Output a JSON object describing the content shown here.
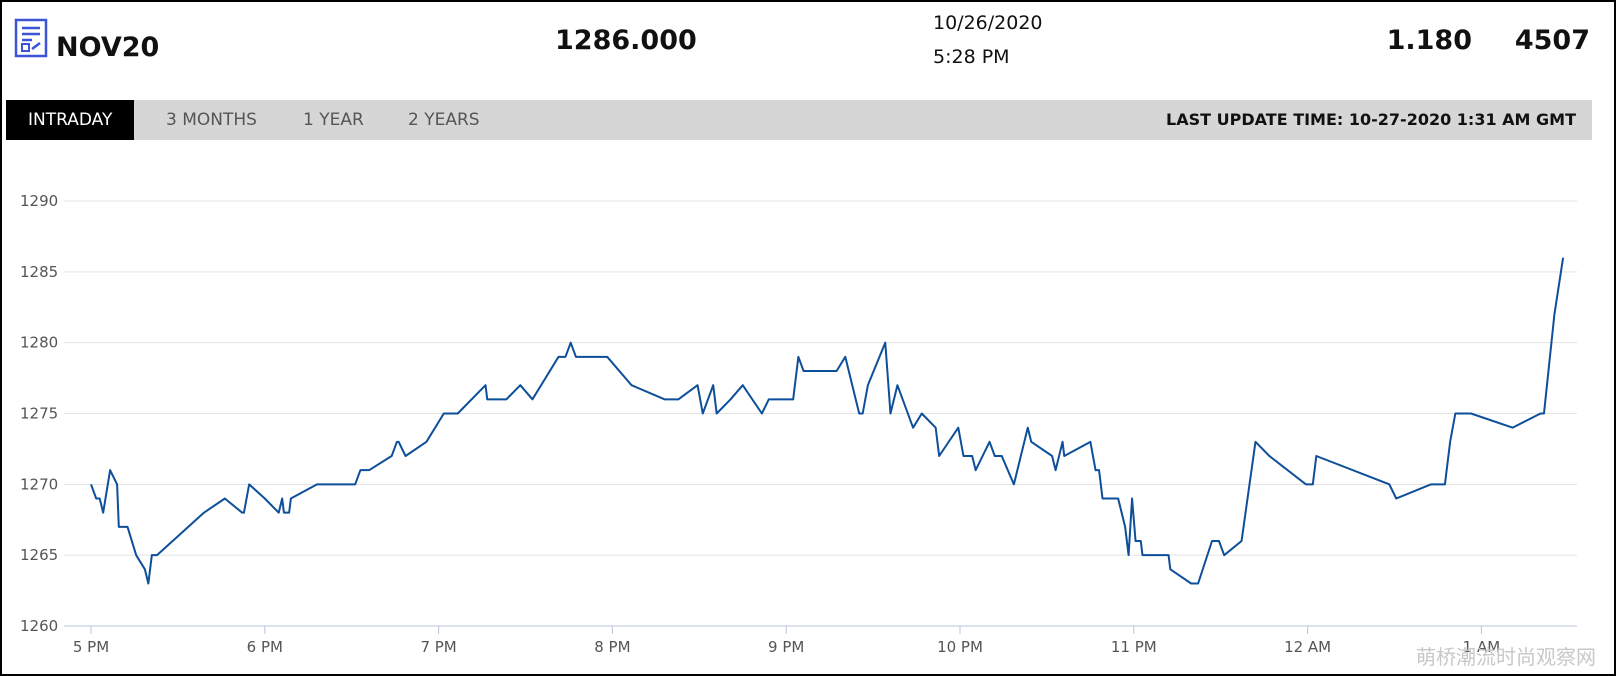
{
  "header": {
    "title": "NOV20",
    "price": "1286.000",
    "date": "10/26/2020",
    "time": "5:28 PM",
    "change": "1.180",
    "volume": "4507"
  },
  "tabs": [
    "INTRADAY",
    "3 MONTHS",
    "1 YEAR",
    "2 YEARS"
  ],
  "last_update": "LAST UPDATE TIME: 10-27-2020 1:31 AM GMT",
  "watermark": "萌桥潮流时尚观察网",
  "chart_data": {
    "type": "line",
    "color": "#0d4f9a",
    "grid": true,
    "x": [
      17.0,
      17.03,
      17.05,
      17.07,
      17.11,
      17.15,
      17.16,
      17.21,
      17.26,
      17.31,
      17.33,
      17.35,
      17.38,
      17.65,
      17.77,
      17.87,
      17.88,
      17.91,
      18.0,
      18.08,
      18.1,
      18.11,
      18.14,
      18.15,
      18.3,
      18.52,
      18.55,
      18.6,
      18.73,
      18.76,
      18.77,
      18.81,
      18.93,
      19.03,
      19.11,
      19.27,
      19.28,
      19.39,
      19.47,
      19.54,
      19.69,
      19.73,
      19.76,
      19.79,
      19.97,
      20.11,
      20.3,
      20.38,
      20.49,
      20.52,
      20.58,
      20.6,
      20.68,
      20.75,
      20.86,
      20.9,
      21.04,
      21.07,
      21.1,
      21.29,
      21.34,
      21.42,
      21.44,
      21.47,
      21.57,
      21.6,
      21.64,
      21.73,
      21.78,
      21.86,
      21.88,
      21.99,
      22.02,
      22.07,
      22.09,
      22.17,
      22.2,
      22.24,
      22.31,
      22.39,
      22.41,
      22.53,
      22.55,
      22.59,
      22.6,
      22.75,
      22.78,
      22.8,
      22.82,
      22.91,
      22.95,
      22.97,
      22.99,
      23.01,
      23.04,
      23.05,
      23.2,
      23.21,
      23.33,
      23.37,
      23.45,
      23.49,
      23.52,
      23.62,
      23.7,
      23.78,
      23.99,
      24.03,
      24.05,
      24.47,
      24.51,
      24.71,
      24.79,
      24.82,
      24.85,
      24.94,
      25.18,
      25.34,
      25.36,
      25.42,
      25.47
    ],
    "values": [
      1270,
      1269,
      1269,
      1268,
      1271,
      1270,
      1267,
      1267,
      1265,
      1264,
      1263,
      1265,
      1265,
      1268,
      1269,
      1268,
      1268,
      1270,
      1269,
      1268,
      1269,
      1268,
      1268,
      1269,
      1270,
      1270,
      1271,
      1271,
      1272,
      1273,
      1273,
      1272,
      1273,
      1275,
      1275,
      1277,
      1276,
      1276,
      1277,
      1276,
      1279,
      1279,
      1280,
      1279,
      1279,
      1277,
      1276,
      1276,
      1277,
      1275,
      1277,
      1275,
      1276,
      1277,
      1275,
      1276,
      1276,
      1279,
      1278,
      1278,
      1279,
      1275,
      1275,
      1277,
      1280,
      1275,
      1277,
      1274,
      1275,
      1274,
      1272,
      1274,
      1272,
      1272,
      1271,
      1273,
      1272,
      1272,
      1270,
      1274,
      1273,
      1272,
      1271,
      1273,
      1272,
      1273,
      1271,
      1271,
      1269,
      1269,
      1267,
      1265,
      1269,
      1266,
      1266,
      1265,
      1265,
      1264,
      1263,
      1263,
      1266,
      1266,
      1265,
      1266,
      1273,
      1272,
      1270,
      1270,
      1272,
      1270,
      1269,
      1270,
      1270,
      1273,
      1275,
      1275,
      1274,
      1275,
      1275,
      1282,
      1286
    ],
    "xlim": [
      17,
      25.55
    ],
    "xticks": [
      {
        "value": 17,
        "label": "5 PM"
      },
      {
        "value": 18,
        "label": "6 PM"
      },
      {
        "value": 19,
        "label": "7 PM"
      },
      {
        "value": 20,
        "label": "8 PM"
      },
      {
        "value": 21,
        "label": "9 PM"
      },
      {
        "value": 22,
        "label": "10 PM"
      },
      {
        "value": 23,
        "label": "11 PM"
      },
      {
        "value": 24,
        "label": "12 AM"
      },
      {
        "value": 25,
        "label": "1 AM"
      }
    ],
    "ylim": [
      1260,
      1290
    ],
    "yticks": [
      1260,
      1265,
      1270,
      1275,
      1280,
      1285,
      1290
    ]
  }
}
